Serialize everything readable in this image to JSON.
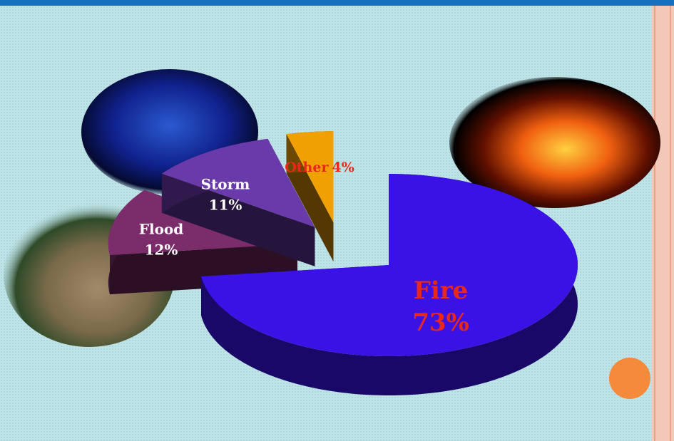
{
  "chart_data": {
    "type": "pie",
    "categories": [
      "Fire",
      "Flood",
      "Storm",
      "Other"
    ],
    "values": [
      73,
      12,
      11,
      4
    ],
    "value_labels": [
      "73%",
      "12%",
      "11%",
      "4%"
    ],
    "colors": [
      "#3a12e6",
      "#7b2c6a",
      "#6a3aaa",
      "#f0a000"
    ]
  }
}
